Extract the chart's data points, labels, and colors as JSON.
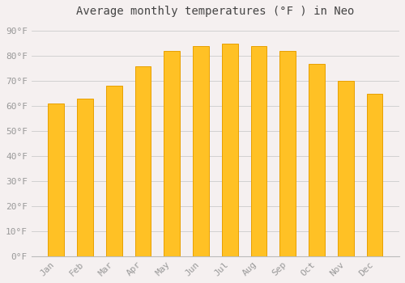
{
  "title": "Average monthly temperatures (°F ) in Neo",
  "months": [
    "Jan",
    "Feb",
    "Mar",
    "Apr",
    "May",
    "Jun",
    "Jul",
    "Aug",
    "Sep",
    "Oct",
    "Nov",
    "Dec"
  ],
  "values": [
    61,
    63,
    68,
    76,
    82,
    84,
    85,
    84,
    82,
    77,
    70,
    65
  ],
  "bar_color": "#FFC125",
  "bar_edge_color": "#E8A000",
  "background_color": "#f5f0f0",
  "plot_bg_color": "#f5f0f0",
  "grid_color": "#cccccc",
  "yticks": [
    0,
    10,
    20,
    30,
    40,
    50,
    60,
    70,
    80,
    90
  ],
  "ylim": [
    0,
    93
  ],
  "title_fontsize": 10,
  "tick_fontsize": 8,
  "tick_color": "#999999",
  "bar_width": 0.55
}
